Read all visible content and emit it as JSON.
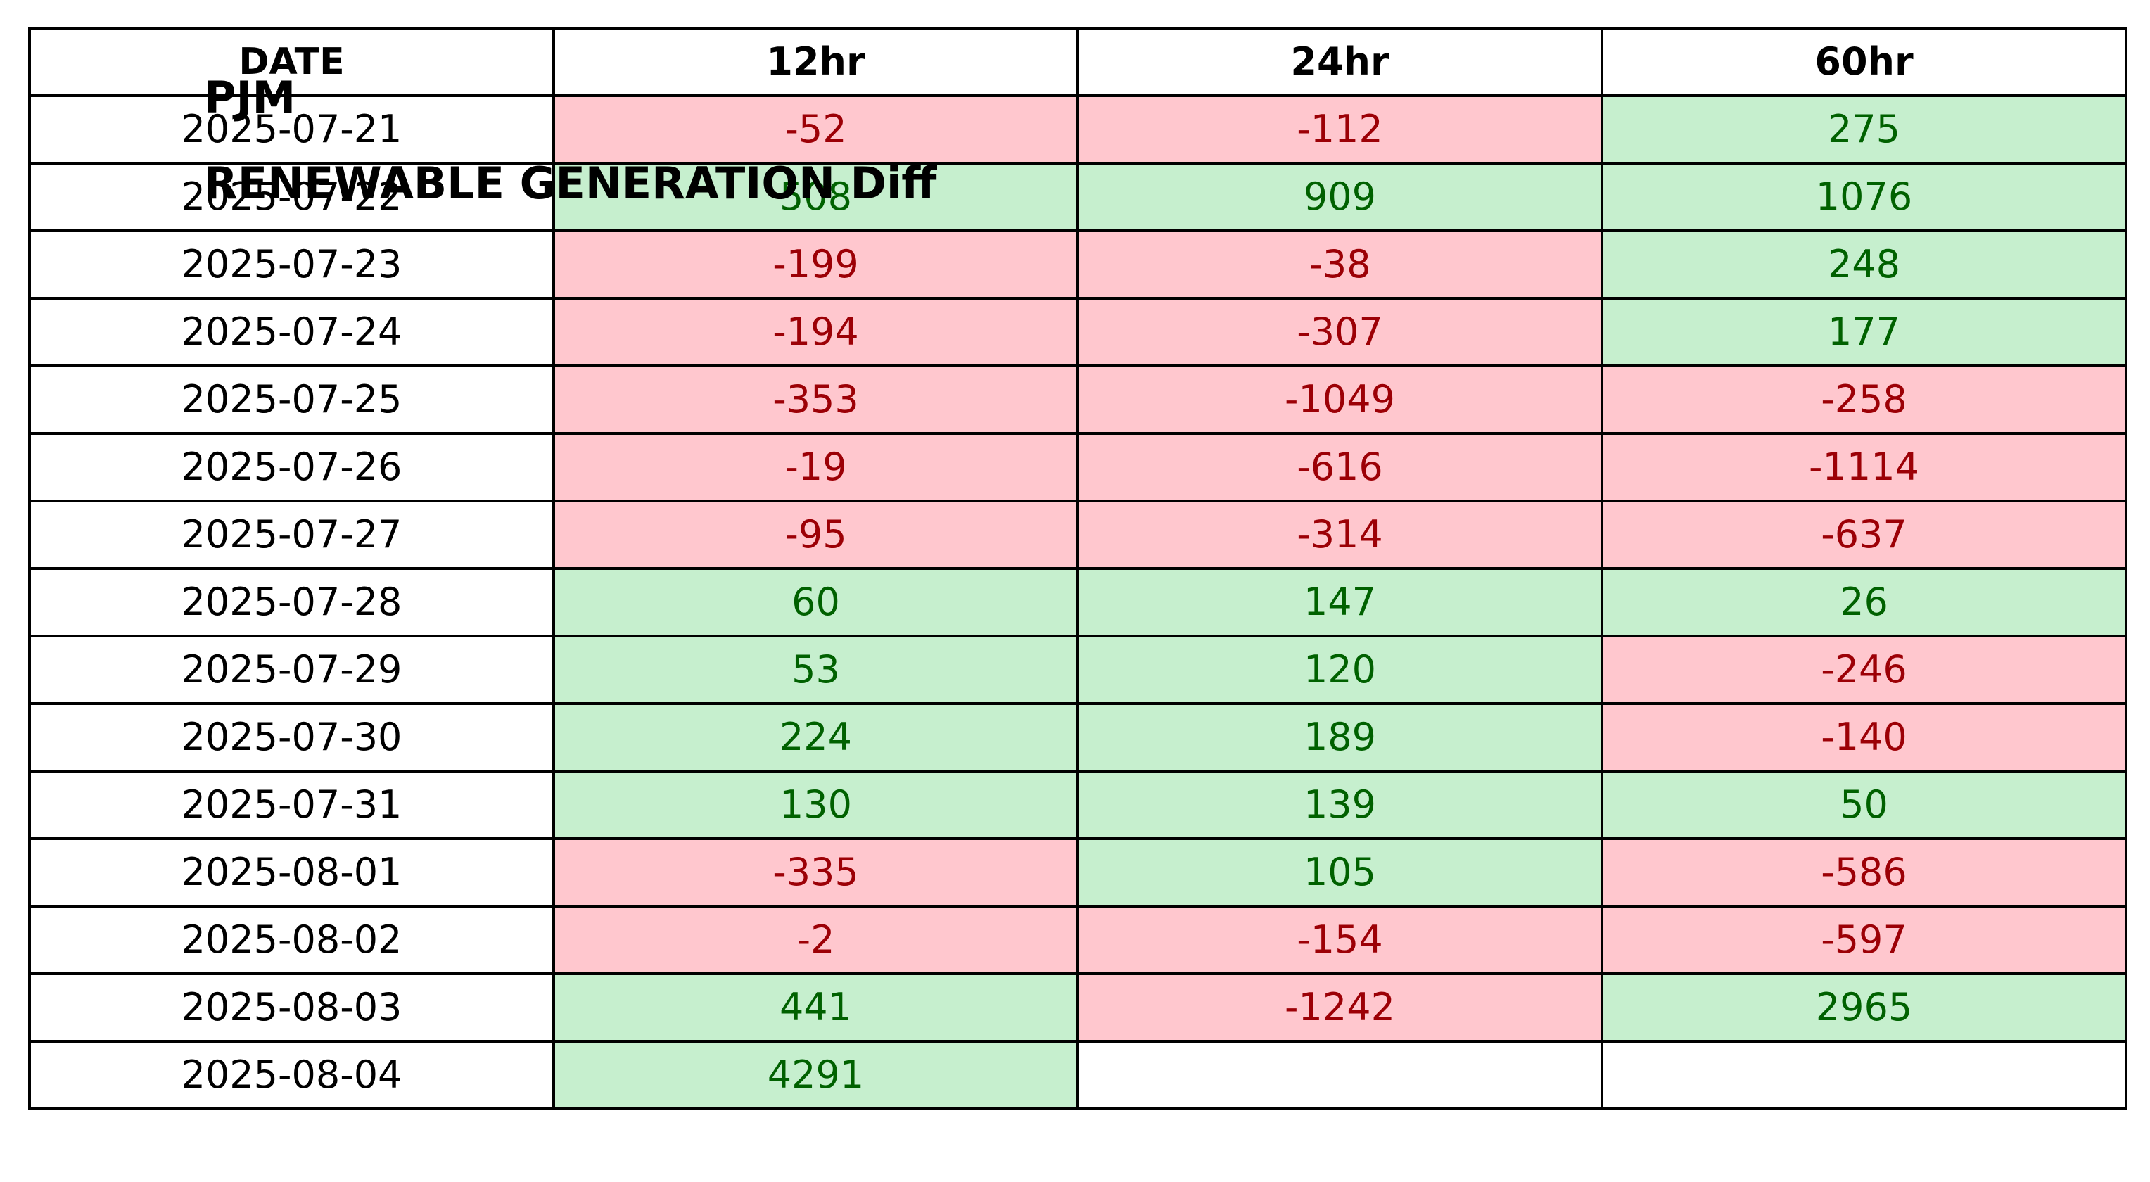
{
  "title_lines": [
    "PJM",
    "RENEWABLE GENERATION Diff"
  ],
  "colors": {
    "positive_bg": "#c6efce",
    "positive_text": "#006100",
    "negative_bg": "#ffc7ce",
    "negative_text": "#9c0006"
  },
  "chart_data": {
    "type": "table",
    "title": "PJM\nRENEWABLE GENERATION Diff",
    "columns": [
      "DATE",
      "12hr",
      "24hr",
      "60hr"
    ],
    "rows": [
      {
        "date": "2025-07-21",
        "values": [
          -52,
          -112,
          275
        ]
      },
      {
        "date": "2025-07-22",
        "values": [
          508,
          909,
          1076
        ]
      },
      {
        "date": "2025-07-23",
        "values": [
          -199,
          -38,
          248
        ]
      },
      {
        "date": "2025-07-24",
        "values": [
          -194,
          -307,
          177
        ]
      },
      {
        "date": "2025-07-25",
        "values": [
          -353,
          -1049,
          -258
        ]
      },
      {
        "date": "2025-07-26",
        "values": [
          -19,
          -616,
          -1114
        ]
      },
      {
        "date": "2025-07-27",
        "values": [
          -95,
          -314,
          -637
        ]
      },
      {
        "date": "2025-07-28",
        "values": [
          60,
          147,
          26
        ]
      },
      {
        "date": "2025-07-29",
        "values": [
          53,
          120,
          -246
        ]
      },
      {
        "date": "2025-07-30",
        "values": [
          224,
          189,
          -140
        ]
      },
      {
        "date": "2025-07-31",
        "values": [
          130,
          139,
          50
        ]
      },
      {
        "date": "2025-08-01",
        "values": [
          -335,
          105,
          -586
        ]
      },
      {
        "date": "2025-08-02",
        "values": [
          -2,
          -154,
          -597
        ]
      },
      {
        "date": "2025-08-03",
        "values": [
          441,
          -1242,
          2965
        ]
      },
      {
        "date": "2025-08-04",
        "values": [
          4291,
          null,
          null
        ]
      }
    ]
  }
}
